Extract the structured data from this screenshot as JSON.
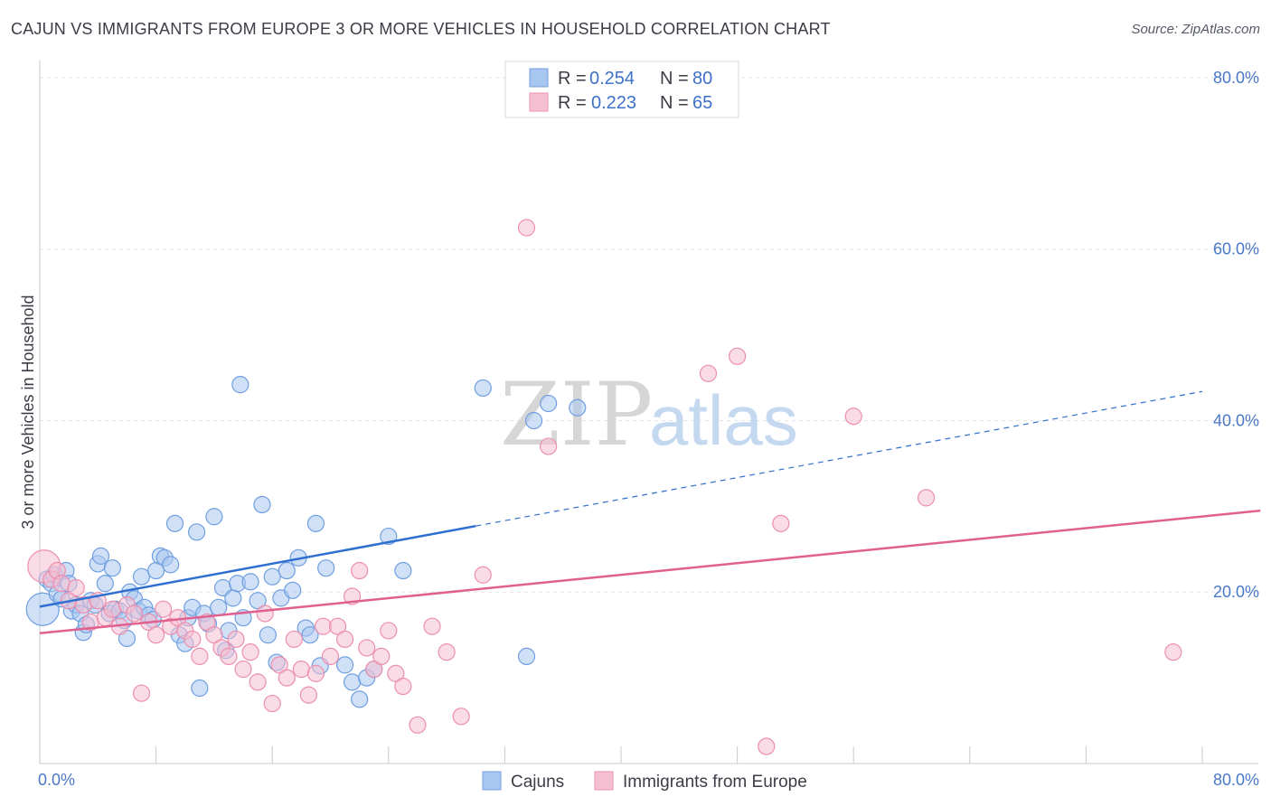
{
  "header": {
    "title": "CAJUN VS IMMIGRANTS FROM EUROPE 3 OR MORE VEHICLES IN HOUSEHOLD CORRELATION CHART",
    "source": "Source: ZipAtlas.com"
  },
  "watermark": {
    "zip": "ZIP",
    "atlas": "atlas"
  },
  "legend_top": {
    "r_label": "R =",
    "n_label": "N =",
    "series": [
      {
        "r": "0.254",
        "n": "80"
      },
      {
        "r": "0.223",
        "n": "65"
      }
    ]
  },
  "chart_data": {
    "type": "scatter",
    "title": "CAJUN VS IMMIGRANTS FROM EUROPE 3 OR MORE VEHICLES IN HOUSEHOLD CORRELATION CHART",
    "xlabel": "",
    "ylabel": "3 or more Vehicles in Household",
    "xlim": [
      0,
      80
    ],
    "ylim": [
      0,
      82
    ],
    "x_tick_labels": [
      "0.0%",
      "80.0%"
    ],
    "y_ticks": [
      20,
      40,
      60,
      80
    ],
    "y_tick_labels": [
      "20.0%",
      "40.0%",
      "60.0%",
      "80.0%"
    ],
    "grid": true,
    "legend_position": "top-center",
    "series": [
      {
        "name": "Cajuns",
        "color": "#6f9fe0",
        "fill": "#a9c6f0",
        "trend_color": "#2f6fd0",
        "trend": {
          "x0": 0,
          "y0": 18.3,
          "x1": 30,
          "y1": 27.7,
          "x_solid_end": 30,
          "x_dash_end": 80,
          "y_dash_end": 43.4
        },
        "points": [
          [
            0.2,
            18.0
          ],
          [
            0.5,
            21.5
          ],
          [
            0.8,
            21.0
          ],
          [
            1.0,
            22.0
          ],
          [
            1.2,
            19.8
          ],
          [
            1.5,
            19.2
          ],
          [
            1.8,
            22.5
          ],
          [
            2.0,
            21.0
          ],
          [
            2.2,
            17.8
          ],
          [
            2.5,
            18.5
          ],
          [
            2.8,
            17.5
          ],
          [
            3.0,
            15.3
          ],
          [
            3.2,
            16.2
          ],
          [
            3.5,
            19.0
          ],
          [
            3.8,
            18.5
          ],
          [
            4.0,
            23.3
          ],
          [
            4.2,
            24.2
          ],
          [
            4.5,
            21.0
          ],
          [
            4.8,
            17.5
          ],
          [
            5.0,
            22.8
          ],
          [
            5.2,
            18.0
          ],
          [
            5.5,
            17.8
          ],
          [
            5.8,
            16.7
          ],
          [
            6.0,
            14.6
          ],
          [
            6.2,
            20.0
          ],
          [
            6.5,
            19.2
          ],
          [
            6.8,
            17.8
          ],
          [
            7.0,
            21.8
          ],
          [
            7.2,
            18.2
          ],
          [
            7.5,
            17.3
          ],
          [
            7.8,
            16.8
          ],
          [
            8.0,
            22.5
          ],
          [
            8.3,
            24.2
          ],
          [
            8.6,
            24.0
          ],
          [
            9.0,
            23.2
          ],
          [
            9.3,
            28.0
          ],
          [
            9.6,
            15.0
          ],
          [
            10.0,
            14.0
          ],
          [
            10.2,
            17.0
          ],
          [
            10.5,
            18.2
          ],
          [
            10.8,
            27.0
          ],
          [
            11.0,
            8.8
          ],
          [
            11.3,
            17.5
          ],
          [
            11.6,
            16.3
          ],
          [
            12.0,
            28.8
          ],
          [
            12.3,
            18.2
          ],
          [
            12.6,
            20.5
          ],
          [
            12.8,
            13.2
          ],
          [
            13.0,
            15.5
          ],
          [
            13.3,
            19.3
          ],
          [
            13.6,
            21.0
          ],
          [
            13.8,
            44.2
          ],
          [
            14.0,
            17.0
          ],
          [
            14.5,
            21.2
          ],
          [
            15.0,
            19.0
          ],
          [
            15.3,
            30.2
          ],
          [
            15.7,
            15.0
          ],
          [
            16.0,
            21.8
          ],
          [
            16.3,
            11.8
          ],
          [
            16.6,
            19.3
          ],
          [
            17.0,
            22.5
          ],
          [
            17.4,
            20.2
          ],
          [
            17.8,
            24.0
          ],
          [
            18.3,
            15.8
          ],
          [
            18.6,
            15.0
          ],
          [
            19.0,
            28.0
          ],
          [
            19.3,
            11.4
          ],
          [
            19.7,
            22.8
          ],
          [
            21.0,
            11.5
          ],
          [
            21.5,
            9.5
          ],
          [
            22.0,
            7.5
          ],
          [
            22.5,
            10.0
          ],
          [
            23.0,
            11.0
          ],
          [
            24.0,
            26.5
          ],
          [
            25.0,
            22.5
          ],
          [
            30.5,
            43.8
          ],
          [
            33.5,
            12.5
          ],
          [
            34.0,
            40.0
          ],
          [
            35.0,
            42.0
          ],
          [
            37.0,
            41.5
          ]
        ]
      },
      {
        "name": "Immigrants from Europe",
        "color": "#ec8fae",
        "fill": "#f6c0d2",
        "trend_color": "#e06090",
        "trend": {
          "x0": 0,
          "y0": 15.2,
          "x1": 84,
          "y1": 29.5
        },
        "points": [
          [
            0.3,
            23.0
          ],
          [
            0.8,
            21.5
          ],
          [
            1.2,
            22.5
          ],
          [
            1.5,
            21.0
          ],
          [
            2.0,
            19.0
          ],
          [
            2.5,
            20.5
          ],
          [
            3.0,
            18.5
          ],
          [
            3.5,
            16.5
          ],
          [
            4.0,
            19.0
          ],
          [
            4.5,
            17.0
          ],
          [
            5.0,
            18.0
          ],
          [
            5.5,
            16.0
          ],
          [
            6.0,
            18.5
          ],
          [
            6.5,
            17.5
          ],
          [
            7.0,
            8.2
          ],
          [
            7.5,
            16.5
          ],
          [
            8.0,
            15.0
          ],
          [
            8.5,
            18.0
          ],
          [
            9.0,
            16.0
          ],
          [
            9.5,
            17.0
          ],
          [
            10.0,
            15.5
          ],
          [
            10.5,
            14.5
          ],
          [
            11.0,
            12.5
          ],
          [
            11.5,
            16.5
          ],
          [
            12.0,
            15.0
          ],
          [
            12.5,
            13.5
          ],
          [
            13.0,
            12.5
          ],
          [
            13.5,
            14.5
          ],
          [
            14.0,
            11.0
          ],
          [
            14.5,
            13.0
          ],
          [
            15.0,
            9.5
          ],
          [
            15.5,
            17.5
          ],
          [
            16.0,
            7.0
          ],
          [
            16.5,
            11.5
          ],
          [
            17.0,
            10.0
          ],
          [
            17.5,
            14.5
          ],
          [
            18.0,
            11.0
          ],
          [
            18.5,
            8.0
          ],
          [
            19.0,
            10.5
          ],
          [
            19.5,
            16.0
          ],
          [
            20.0,
            12.5
          ],
          [
            20.5,
            16.0
          ],
          [
            21.0,
            14.5
          ],
          [
            21.5,
            19.5
          ],
          [
            22.0,
            22.5
          ],
          [
            22.5,
            13.5
          ],
          [
            23.0,
            11.0
          ],
          [
            23.5,
            12.5
          ],
          [
            24.0,
            15.5
          ],
          [
            24.5,
            10.5
          ],
          [
            25.0,
            9.0
          ],
          [
            26.0,
            4.5
          ],
          [
            27.0,
            16.0
          ],
          [
            28.0,
            13.0
          ],
          [
            29.0,
            5.5
          ],
          [
            30.5,
            22.0
          ],
          [
            33.5,
            62.5
          ],
          [
            35.0,
            37.0
          ],
          [
            46.0,
            45.5
          ],
          [
            48.0,
            47.5
          ],
          [
            50.0,
            2.0
          ],
          [
            51.0,
            28.0
          ],
          [
            56.0,
            40.5
          ],
          [
            61.0,
            31.0
          ],
          [
            78.0,
            13.0
          ]
        ]
      }
    ]
  },
  "legend_bottom": [
    {
      "label": "Cajuns"
    },
    {
      "label": "Immigrants from Europe"
    }
  ],
  "colors": {
    "blue": "#2f6fd0",
    "pink": "#e06090",
    "grid": "#e2e2e8",
    "axis": "#c8c8d0"
  }
}
